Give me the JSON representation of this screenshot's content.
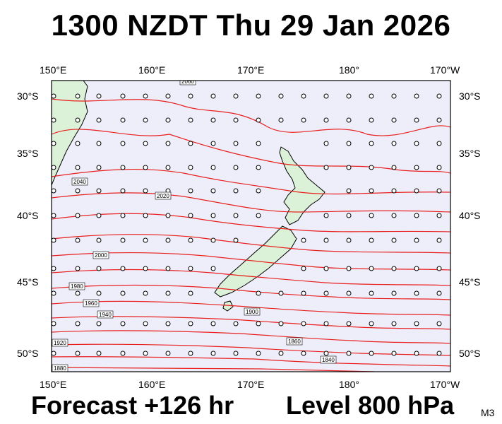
{
  "title": "1300 NZDT Thu 29 Jan 2026",
  "footer": {
    "forecast": "Forecast +126 hr",
    "level": "Level 800 hPa",
    "code": "M3"
  },
  "axes": {
    "lon_labels": [
      "150°E",
      "160°E",
      "170°E",
      "180°",
      "170°W"
    ],
    "lat_labels": [
      "30°S",
      "35°S",
      "40°S",
      "45°S",
      "50°S"
    ]
  },
  "colors": {
    "ocean": "#eeeefb",
    "land": "#dcf2d8",
    "contour": "#e8201e",
    "barb": "#000000"
  },
  "contour_labels": [
    "2060",
    "2040",
    "2020",
    "2000",
    "1980",
    "1960",
    "1940",
    "1920",
    "1900",
    "1880",
    "1860",
    "1840"
  ]
}
